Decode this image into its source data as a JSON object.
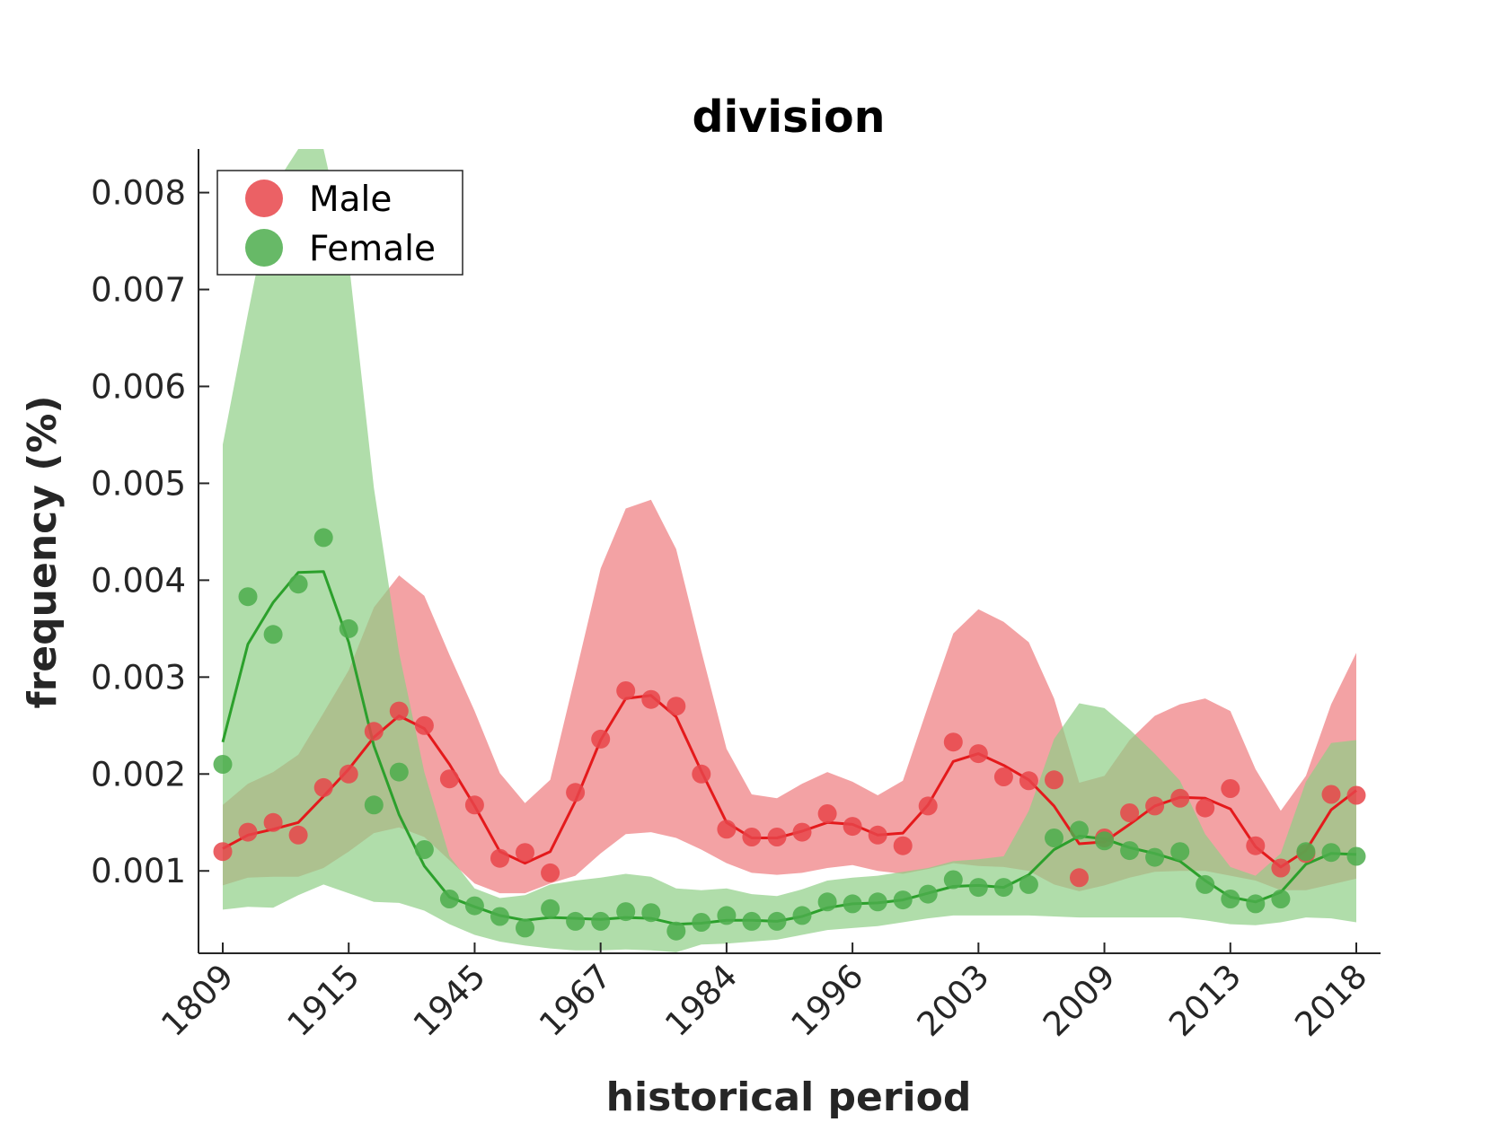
{
  "chart_data": {
    "type": "line",
    "title": "division",
    "xlabel": "historical period",
    "ylabel": "frequency (%)",
    "x_tick_labels": [
      "1809",
      "1915",
      "1945",
      "1967",
      "1984",
      "1996",
      "2003",
      "2009",
      "2013",
      "2018"
    ],
    "y_ticks": [
      0.001,
      0.002,
      0.003,
      0.004,
      0.005,
      0.006,
      0.007,
      0.008
    ],
    "y_tick_labels": [
      "0.001",
      "0.002",
      "0.003",
      "0.004",
      "0.005",
      "0.006",
      "0.007",
      "0.008"
    ],
    "ylim": [
      0.00015,
      0.00845
    ],
    "grid": false,
    "legend_position": "top-left",
    "num_periods": 46,
    "series": [
      {
        "name": "Male",
        "color": "#e41a1c",
        "marker_color": "#e8454a",
        "band_color": "#ee7a7e",
        "points": [
          0.0012,
          0.0014,
          0.0015,
          0.00137,
          0.00186,
          0.002,
          0.00244,
          0.00265,
          0.0025,
          0.00195,
          0.00168,
          0.00113,
          0.00119,
          0.00098,
          0.00181,
          0.00236,
          0.00286,
          0.00277,
          0.0027,
          0.002,
          0.00143,
          0.00135,
          0.00135,
          0.0014,
          0.00159,
          0.00146,
          0.00137,
          0.00126,
          0.00167,
          0.00233,
          0.00221,
          0.00197,
          0.00193,
          0.00194,
          0.00093,
          0.00134,
          0.0016,
          0.00167,
          0.00175,
          0.00165,
          0.00185,
          0.00126,
          0.00103,
          0.00118,
          0.00179,
          0.00178
        ],
        "trend": [
          0.00123,
          0.00137,
          0.00143,
          0.0015,
          0.00177,
          0.00205,
          0.00238,
          0.0026,
          0.00247,
          0.0021,
          0.00167,
          0.0012,
          0.00108,
          0.0012,
          0.00172,
          0.00235,
          0.00278,
          0.00281,
          0.00259,
          0.00203,
          0.0015,
          0.00134,
          0.00134,
          0.00141,
          0.0015,
          0.00148,
          0.00137,
          0.00139,
          0.00168,
          0.00213,
          0.00221,
          0.00209,
          0.00194,
          0.00167,
          0.00128,
          0.0013,
          0.00148,
          0.00167,
          0.00176,
          0.00175,
          0.00164,
          0.00125,
          0.00104,
          0.00121,
          0.00163,
          0.00183
        ],
        "band_upper": [
          0.00168,
          0.0019,
          0.00202,
          0.0022,
          0.00263,
          0.00307,
          0.00372,
          0.00405,
          0.00384,
          0.00323,
          0.00265,
          0.00201,
          0.0017,
          0.00194,
          0.00302,
          0.00412,
          0.00474,
          0.00483,
          0.00432,
          0.00327,
          0.00226,
          0.00179,
          0.00175,
          0.0019,
          0.00202,
          0.00192,
          0.00178,
          0.00193,
          0.0027,
          0.00345,
          0.0037,
          0.00357,
          0.00336,
          0.00278,
          0.00191,
          0.00198,
          0.00235,
          0.0026,
          0.00272,
          0.00278,
          0.00265,
          0.00205,
          0.00162,
          0.00198,
          0.00272,
          0.00325
        ],
        "band_lower": [
          0.00085,
          0.00093,
          0.00094,
          0.00094,
          0.00103,
          0.0012,
          0.00139,
          0.00145,
          0.00135,
          0.00111,
          0.00087,
          0.00077,
          0.00077,
          0.00087,
          0.00095,
          0.00118,
          0.00138,
          0.0014,
          0.00134,
          0.00122,
          0.00108,
          0.00098,
          0.00096,
          0.00098,
          0.00103,
          0.00106,
          0.001,
          0.00097,
          0.00102,
          0.00108,
          0.00105,
          0.00104,
          0.001,
          0.00086,
          0.00079,
          0.00085,
          0.00093,
          0.00099,
          0.001,
          0.001,
          0.00095,
          0.0009,
          0.0008,
          0.0008,
          0.00086,
          0.00092
        ]
      },
      {
        "name": "Female",
        "color": "#2ca02c",
        "marker_color": "#4cad4c",
        "band_color": "#8fcf86",
        "points": [
          0.0021,
          0.00383,
          0.00344,
          0.00396,
          0.00444,
          0.0035,
          0.00168,
          0.00202,
          0.00122,
          0.00071,
          0.00064,
          0.00053,
          0.00041,
          0.00061,
          0.00048,
          0.00048,
          0.00058,
          0.00057,
          0.00038,
          0.00047,
          0.00054,
          0.00048,
          0.00048,
          0.00054,
          0.00068,
          0.00066,
          0.00068,
          0.0007,
          0.00076,
          0.00091,
          0.00083,
          0.00083,
          0.00086,
          0.00134,
          0.00142,
          0.00131,
          0.00121,
          0.00114,
          0.0012,
          0.00086,
          0.00071,
          0.00066,
          0.00071,
          0.0012,
          0.00119,
          0.00115
        ],
        "trend": [
          0.00233,
          0.00334,
          0.00377,
          0.00408,
          0.00409,
          0.00336,
          0.00229,
          0.00158,
          0.00105,
          0.00073,
          0.00063,
          0.00054,
          0.00049,
          0.00052,
          0.00051,
          0.0005,
          0.00052,
          0.00051,
          0.00045,
          0.00046,
          0.00049,
          0.00049,
          0.00048,
          0.00053,
          0.00062,
          0.00066,
          0.00067,
          0.0007,
          0.00077,
          0.00084,
          0.00085,
          0.00083,
          0.00096,
          0.00122,
          0.00136,
          0.00133,
          0.00124,
          0.00118,
          0.0011,
          0.0009,
          0.00073,
          0.00068,
          0.00078,
          0.00107,
          0.00118,
          0.00117
        ],
        "band_upper": [
          0.0054,
          0.00675,
          0.00805,
          0.00845,
          0.00845,
          0.0073,
          0.00495,
          0.00325,
          0.00202,
          0.00115,
          0.00082,
          0.00072,
          0.00075,
          0.00086,
          0.0009,
          0.00093,
          0.00097,
          0.00094,
          0.00082,
          0.0008,
          0.00082,
          0.00076,
          0.00074,
          0.00081,
          0.0009,
          0.00093,
          0.00095,
          0.00099,
          0.00103,
          0.0011,
          0.00112,
          0.00115,
          0.00162,
          0.00236,
          0.00273,
          0.00268,
          0.00246,
          0.00221,
          0.00193,
          0.00138,
          0.00104,
          0.00095,
          0.00118,
          0.00192,
          0.00232,
          0.00235
        ],
        "band_lower": [
          0.0006,
          0.00063,
          0.00062,
          0.00075,
          0.00086,
          0.00077,
          0.00068,
          0.00067,
          0.00059,
          0.00045,
          0.00034,
          0.00027,
          0.00023,
          0.0002,
          0.00018,
          0.00018,
          0.00019,
          0.00018,
          0.00016,
          0.00024,
          0.00025,
          0.00027,
          0.00029,
          0.00034,
          0.00039,
          0.00041,
          0.00043,
          0.00047,
          0.00051,
          0.00054,
          0.00054,
          0.00054,
          0.00054,
          0.00053,
          0.00052,
          0.00052,
          0.00052,
          0.00052,
          0.00052,
          0.00049,
          0.00045,
          0.00044,
          0.00047,
          0.00052,
          0.00051,
          0.00047
        ]
      }
    ]
  }
}
